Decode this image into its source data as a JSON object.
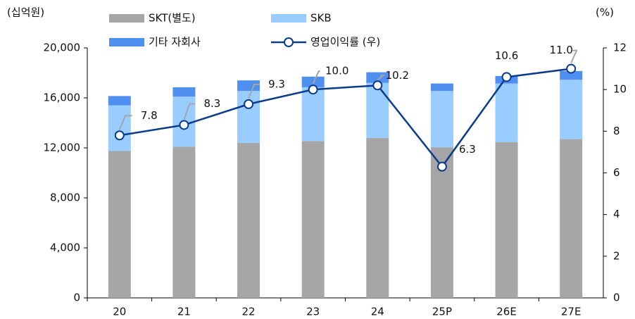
{
  "chart_data": {
    "type": "bar",
    "y_label": "(십억원)",
    "y2_label": "(%)",
    "categories": [
      "20",
      "21",
      "22",
      "23",
      "24",
      "25P",
      "26E",
      "27E"
    ],
    "series": [
      {
        "name": "SKT(별도)",
        "color": "#a6a6a6",
        "values": [
          11750,
          12100,
          12400,
          12550,
          12800,
          12050,
          12450,
          12700
        ]
      },
      {
        "name": "SKB",
        "color": "#99ccff",
        "values": [
          3650,
          4000,
          4150,
          4300,
          4400,
          4500,
          4700,
          4750
        ]
      },
      {
        "name": "기타 자회사",
        "color": "#4f8ff0",
        "values": [
          750,
          750,
          850,
          850,
          850,
          600,
          600,
          700
        ]
      },
      {
        "name": "영업이익률 (우)",
        "color": "#0b3c8c",
        "type": "line",
        "axis": "y2",
        "values": [
          7.8,
          8.3,
          9.3,
          10.0,
          10.2,
          6.3,
          10.6,
          11.0
        ],
        "value_labels": [
          "7.8",
          "8.3",
          "9.3",
          "10.0",
          "10.2",
          "6.3",
          "10.6",
          "11.0"
        ]
      }
    ],
    "ylim": [
      0,
      20000
    ],
    "yticks": [
      0,
      {
        "value": 4000,
        "label": "4,000"
      },
      {
        "value": 8000,
        "label": "8,000"
      },
      {
        "value": 12000,
        "label": "12,000"
      },
      {
        "value": 16000,
        "label": "16,000"
      },
      {
        "value": 20000,
        "label": "20,000"
      }
    ],
    "y2lim": [
      0,
      12
    ],
    "y2ticks": [
      0,
      2,
      4,
      6,
      8,
      10,
      12
    ]
  }
}
